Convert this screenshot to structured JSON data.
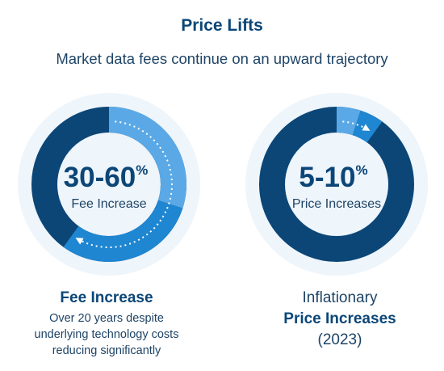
{
  "header": {
    "title": "Price Lifts",
    "subtitle": "Market data fees continue on an upward trajectory"
  },
  "colors": {
    "dark_blue": "#0b4677",
    "mid_blue": "#1f86d1",
    "light_blue": "#5aa9e6",
    "halo": "#eef5fb",
    "text": "#1e4466"
  },
  "chart_data": [
    {
      "type": "pie",
      "style": "donut",
      "value_label": "30-60",
      "value_unit": "%",
      "center_label": "Fee Increase",
      "range_percent": [
        30,
        60
      ],
      "caption": {
        "heading": "Fee Increase",
        "body": [
          "Over 20 years despite",
          "underlying technology costs",
          "reducing significantly"
        ]
      }
    },
    {
      "type": "pie",
      "style": "donut",
      "value_label": "5-10",
      "value_unit": "%",
      "center_label": "Price Increases",
      "range_percent": [
        5,
        10
      ],
      "caption": {
        "intro": "Inflationary",
        "heading": "Price Increases",
        "footer": "(2023)"
      }
    }
  ]
}
